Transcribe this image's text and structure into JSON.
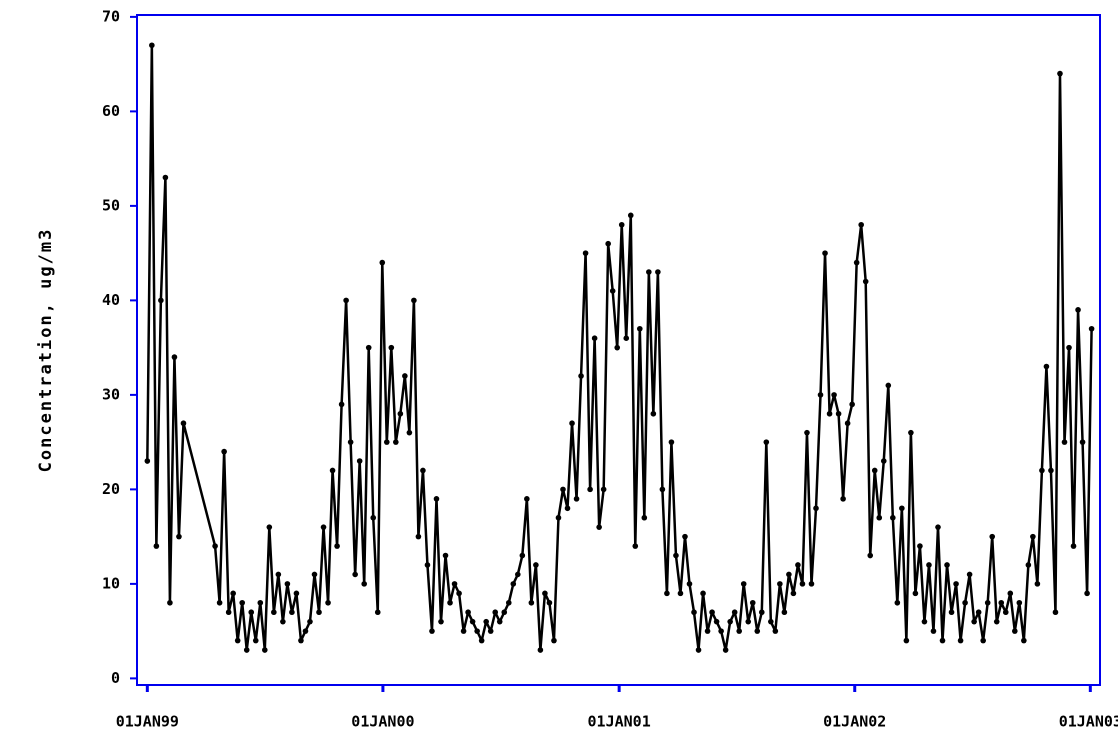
{
  "chart_data": {
    "type": "line",
    "y_label": "Concentration, ug/m3",
    "color": "#000000",
    "axis_color": "#0000ee",
    "xlim": [
      "1998-12-16",
      "2003-01-16"
    ],
    "xticks": [
      {
        "value": "1999-01-01",
        "label": "01JAN99"
      },
      {
        "value": "2000-01-01",
        "label": "01JAN00"
      },
      {
        "value": "2001-01-01",
        "label": "01JAN01"
      },
      {
        "value": "2002-01-01",
        "label": "01JAN02"
      },
      {
        "value": "2003-01-01",
        "label": "01JAN03"
      }
    ],
    "ylim": [
      -0.7,
      70.2
    ],
    "yticks": [
      0,
      10,
      20,
      30,
      40,
      50,
      60,
      70
    ],
    "x": [
      "1999-01-01",
      "1999-01-08",
      "1999-01-15",
      "1999-01-22",
      "1999-01-29",
      "1999-02-05",
      "1999-02-12",
      "1999-02-19",
      "1999-02-26",
      "1999-04-16",
      "1999-04-23",
      "1999-04-30",
      "1999-05-07",
      "1999-05-14",
      "1999-05-21",
      "1999-05-28",
      "1999-06-04",
      "1999-06-11",
      "1999-06-18",
      "1999-06-25",
      "1999-07-02",
      "1999-07-09",
      "1999-07-16",
      "1999-07-23",
      "1999-07-30",
      "1999-08-06",
      "1999-08-13",
      "1999-08-20",
      "1999-08-27",
      "1999-09-03",
      "1999-09-10",
      "1999-09-17",
      "1999-09-24",
      "1999-10-01",
      "1999-10-08",
      "1999-10-15",
      "1999-10-22",
      "1999-10-29",
      "1999-11-05",
      "1999-11-12",
      "1999-11-19",
      "1999-11-26",
      "1999-12-03",
      "1999-12-10",
      "1999-12-17",
      "1999-12-24",
      "1999-12-31",
      "2000-01-07",
      "2000-01-14",
      "2000-01-21",
      "2000-01-28",
      "2000-02-04",
      "2000-02-11",
      "2000-02-18",
      "2000-02-25",
      "2000-03-03",
      "2000-03-10",
      "2000-03-17",
      "2000-03-24",
      "2000-03-31",
      "2000-04-07",
      "2000-04-14",
      "2000-04-21",
      "2000-04-28",
      "2000-05-05",
      "2000-05-12",
      "2000-05-19",
      "2000-05-26",
      "2000-06-02",
      "2000-06-09",
      "2000-06-16",
      "2000-06-23",
      "2000-06-30",
      "2000-07-07",
      "2000-07-14",
      "2000-07-21",
      "2000-07-28",
      "2000-08-04",
      "2000-08-11",
      "2000-08-18",
      "2000-08-25",
      "2000-09-01",
      "2000-09-08",
      "2000-09-15",
      "2000-09-22",
      "2000-09-29",
      "2000-10-06",
      "2000-10-13",
      "2000-10-20",
      "2000-10-27",
      "2000-11-03",
      "2000-11-10",
      "2000-11-17",
      "2000-11-24",
      "2000-12-01",
      "2000-12-08",
      "2000-12-15",
      "2000-12-22",
      "2000-12-29",
      "2001-01-05",
      "2001-01-12",
      "2001-01-19",
      "2001-01-26",
      "2001-02-02",
      "2001-02-09",
      "2001-02-16",
      "2001-02-23",
      "2001-03-02",
      "2001-03-09",
      "2001-03-16",
      "2001-03-23",
      "2001-03-30",
      "2001-04-06",
      "2001-04-13",
      "2001-04-20",
      "2001-04-27",
      "2001-05-04",
      "2001-05-11",
      "2001-05-18",
      "2001-05-25",
      "2001-06-01",
      "2001-06-08",
      "2001-06-15",
      "2001-06-22",
      "2001-06-29",
      "2001-07-06",
      "2001-07-13",
      "2001-07-20",
      "2001-07-27",
      "2001-08-03",
      "2001-08-10",
      "2001-08-17",
      "2001-08-24",
      "2001-08-31",
      "2001-09-07",
      "2001-09-14",
      "2001-09-21",
      "2001-09-28",
      "2001-10-05",
      "2001-10-12",
      "2001-10-19",
      "2001-10-26",
      "2001-11-02",
      "2001-11-09",
      "2001-11-16",
      "2001-11-23",
      "2001-11-30",
      "2001-12-07",
      "2001-12-14",
      "2001-12-21",
      "2001-12-28",
      "2002-01-04",
      "2002-01-11",
      "2002-01-18",
      "2002-01-25",
      "2002-02-01",
      "2002-02-08",
      "2002-02-15",
      "2002-02-22",
      "2002-03-01",
      "2002-03-08",
      "2002-03-15",
      "2002-03-22",
      "2002-03-29",
      "2002-04-05",
      "2002-04-12",
      "2002-04-19",
      "2002-04-26",
      "2002-05-03",
      "2002-05-10",
      "2002-05-17",
      "2002-05-24",
      "2002-05-31",
      "2002-06-07",
      "2002-06-14",
      "2002-06-21",
      "2002-06-28",
      "2002-07-05",
      "2002-07-12",
      "2002-07-19",
      "2002-07-26",
      "2002-08-02",
      "2002-08-09",
      "2002-08-16",
      "2002-08-23",
      "2002-08-30",
      "2002-09-06",
      "2002-09-13",
      "2002-09-20",
      "2002-09-27",
      "2002-10-04",
      "2002-10-11",
      "2002-10-18",
      "2002-10-25",
      "2002-11-01",
      "2002-11-08",
      "2002-11-15",
      "2002-11-22",
      "2002-11-29",
      "2002-12-06",
      "2002-12-13",
      "2002-12-20",
      "2002-12-27",
      "2003-01-03"
    ],
    "values": [
      23,
      67,
      14,
      40,
      53,
      8,
      34,
      15,
      27,
      14,
      8,
      24,
      7,
      9,
      4,
      8,
      3,
      7,
      4,
      8,
      3,
      16,
      7,
      11,
      6,
      10,
      7,
      9,
      4,
      5,
      6,
      11,
      7,
      16,
      8,
      22,
      14,
      29,
      40,
      25,
      11,
      23,
      10,
      35,
      17,
      7,
      44,
      25,
      35,
      25,
      28,
      32,
      26,
      40,
      15,
      22,
      12,
      5,
      19,
      6,
      13,
      8,
      10,
      9,
      5,
      7,
      6,
      5,
      4,
      6,
      5,
      7,
      6,
      7,
      8,
      10,
      11,
      13,
      19,
      8,
      12,
      3,
      9,
      8,
      4,
      17,
      20,
      18,
      27,
      19,
      32,
      45,
      20,
      36,
      16,
      20,
      46,
      41,
      35,
      48,
      36,
      49,
      14,
      37,
      17,
      43,
      28,
      43,
      20,
      9,
      25,
      13,
      9,
      15,
      10,
      7,
      3,
      9,
      5,
      7,
      6,
      5,
      3,
      6,
      7,
      5,
      10,
      6,
      8,
      5,
      7,
      25,
      6,
      5,
      10,
      7,
      11,
      9,
      12,
      10,
      26,
      10,
      18,
      30,
      45,
      28,
      30,
      28,
      19,
      27,
      29,
      44,
      48,
      42,
      13,
      22,
      17,
      23,
      31,
      17,
      8,
      18,
      4,
      26,
      9,
      14,
      6,
      12,
      5,
      16,
      4,
      12,
      7,
      10,
      4,
      8,
      11,
      6,
      7,
      4,
      8,
      15,
      6,
      8,
      7,
      9,
      5,
      8,
      4,
      12,
      15,
      10,
      22,
      33,
      22,
      7,
      64,
      25,
      35,
      14,
      39,
      25,
      9,
      37
    ]
  }
}
